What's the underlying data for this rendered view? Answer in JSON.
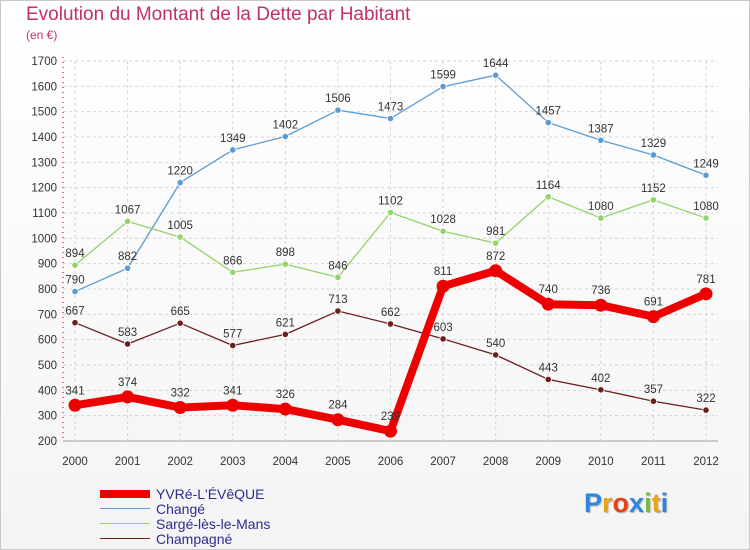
{
  "title": "Evolution du Montant de la Dette par Habitant",
  "unit_label": "(en €)",
  "logo": {
    "text": "Proxiti",
    "letter_colors": [
      "#2e86de",
      "#e8a317",
      "#e84118",
      "#2e86de",
      "#78b83c",
      "#e8a317",
      "#2e86de"
    ]
  },
  "chart_data": {
    "type": "line",
    "title": "Evolution du Montant de la Dette par Habitant",
    "ylabel": "(en €)",
    "x": [
      "2000",
      "2001",
      "2002",
      "2003",
      "2004",
      "2005",
      "2006",
      "2007",
      "2008",
      "2009",
      "2010",
      "2011",
      "2012"
    ],
    "yticks": [
      200,
      300,
      400,
      500,
      600,
      700,
      800,
      900,
      1000,
      1100,
      1200,
      1300,
      1400,
      1500,
      1600,
      1700
    ],
    "ylim": [
      200,
      1700
    ],
    "grid": true,
    "legend_position": "bottom-left",
    "series": [
      {
        "name": "YVRé-L'ÉVêQUE",
        "color": "#ee0000",
        "emphasis": true,
        "values": [
          341,
          374,
          332,
          341,
          326,
          284,
          239,
          811,
          872,
          740,
          736,
          691,
          781
        ]
      },
      {
        "name": "Changé",
        "color": "#5a9bd4",
        "emphasis": false,
        "values": [
          790,
          882,
          1220,
          1349,
          1402,
          1506,
          1473,
          1599,
          1644,
          1457,
          1387,
          1329,
          1249
        ]
      },
      {
        "name": "Sargé-lès-le-Mans",
        "color": "#93d36a",
        "emphasis": false,
        "values": [
          894,
          1067,
          1005,
          866,
          898,
          846,
          1102,
          1028,
          981,
          1164,
          1080,
          1152,
          1080
        ]
      },
      {
        "name": "Champagné",
        "color": "#6b1e1e",
        "emphasis": false,
        "values": [
          667,
          583,
          665,
          577,
          621,
          713,
          662,
          603,
          540,
          443,
          402,
          357,
          322
        ]
      }
    ]
  }
}
